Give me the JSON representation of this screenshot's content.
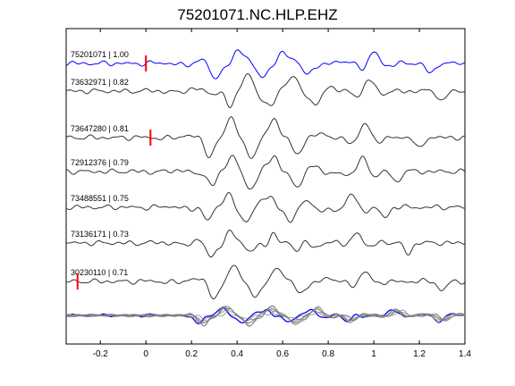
{
  "chart_data": {
    "type": "line",
    "title": "75201071.NC.HLP.EHZ",
    "xlabel": "",
    "ylabel": "",
    "xlim": [
      -0.35,
      1.4
    ],
    "xticks": [
      -0.2,
      0,
      0.2,
      0.4,
      0.6,
      0.8,
      1,
      1.2,
      1.4
    ],
    "xtick_labels": [
      "-0.2",
      "0",
      "0.2",
      "0.4",
      "0.6",
      "0.8",
      "1",
      "1.2",
      "1.4"
    ],
    "grid": false,
    "legend": "none",
    "colors": {
      "reference": "#0000ff",
      "trace": "#333333",
      "stack_trace": "#808080",
      "pick": "#ff0000",
      "axes": "#000000"
    },
    "series": [
      {
        "label": "75201071 | 1.00",
        "kind": "reference",
        "pick_time": 0.0,
        "arrivals": [
          0.3,
          0.4,
          0.5,
          0.6,
          0.7,
          1.0,
          1.25
        ],
        "amplitude": 0.8
      },
      {
        "label": "73632971 | 0.82",
        "kind": "trace",
        "pick_time": null,
        "arrivals": [
          0.37,
          0.45,
          0.55,
          0.65,
          0.75,
          0.98,
          1.3
        ],
        "amplitude": 0.75
      },
      {
        "label": "73647280 | 0.81",
        "kind": "trace",
        "pick_time": 0.02,
        "arrivals": [
          0.28,
          0.37,
          0.46,
          0.56,
          0.66,
          0.96,
          1.2
        ],
        "amplitude": 0.85
      },
      {
        "label": "72912376 | 0.79",
        "kind": "trace",
        "pick_time": null,
        "arrivals": [
          0.29,
          0.38,
          0.47,
          0.57,
          0.67,
          0.95,
          1.1
        ],
        "amplitude": 0.8
      },
      {
        "label": "73488551 | 0.75",
        "kind": "trace",
        "pick_time": null,
        "arrivals": [
          0.27,
          0.36,
          0.45,
          0.55,
          0.64,
          0.9,
          1.05
        ],
        "amplitude": 0.8
      },
      {
        "label": "73136171 | 0.73",
        "kind": "trace",
        "pick_time": null,
        "arrivals": [
          0.28,
          0.37,
          0.46,
          0.56,
          0.66,
          0.93,
          1.15
        ],
        "amplitude": 0.75
      },
      {
        "label": "30230110 | 0.71",
        "kind": "trace",
        "pick_time": -0.3,
        "arrivals": [
          0.3,
          0.38,
          0.47,
          0.57,
          0.67,
          0.96,
          1.3
        ],
        "amplitude": 0.7
      }
    ],
    "stack": {
      "kind": "overlay",
      "arrivals": [
        0.25,
        0.35,
        0.45,
        0.55,
        0.65,
        0.75,
        0.9,
        1.1,
        1.3
      ],
      "amplitude": 0.9
    }
  }
}
